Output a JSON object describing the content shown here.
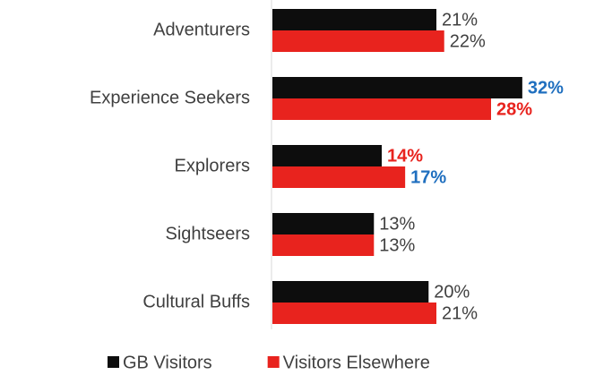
{
  "chart_data": {
    "type": "hbar",
    "categories": [
      "Adventurers",
      "Experience Seekers",
      "Explorers",
      "Sightseers",
      "Cultural Buffs"
    ],
    "series": [
      {
        "name": "GB Visitors",
        "color": "#0d0d0d",
        "values": [
          21,
          32,
          14,
          13,
          20
        ],
        "value_labels": [
          "21%",
          "32%",
          "14%",
          "13%",
          "20%"
        ],
        "label_colors": [
          "#404040",
          "#1f6fbf",
          "#e8231e",
          "#404040",
          "#404040"
        ],
        "label_weights": [
          "normal",
          "bold",
          "bold",
          "normal",
          "normal"
        ]
      },
      {
        "name": "Visitors Elsewhere",
        "color": "#e8231e",
        "values": [
          22,
          28,
          17,
          13,
          21
        ],
        "value_labels": [
          "22%",
          "28%",
          "17%",
          "13%",
          "21%"
        ],
        "label_colors": [
          "#404040",
          "#e8231e",
          "#1f6fbf",
          "#404040",
          "#404040"
        ],
        "label_weights": [
          "normal",
          "bold",
          "bold",
          "normal",
          "normal"
        ]
      }
    ],
    "xlim": [
      0,
      35
    ],
    "legend": "bottom"
  }
}
